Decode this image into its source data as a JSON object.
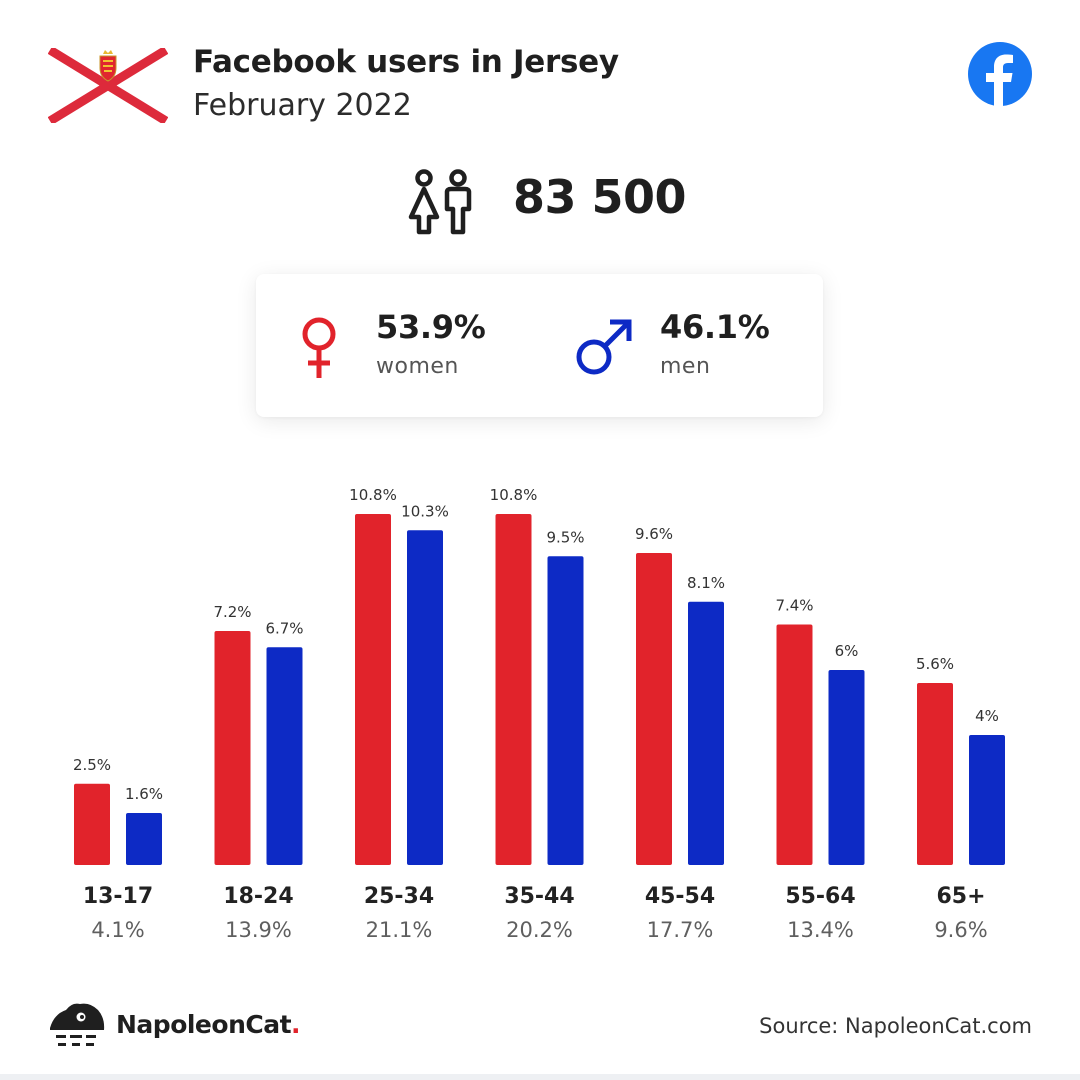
{
  "header": {
    "title": "Facebook users in Jersey",
    "subtitle": "February 2022"
  },
  "total_users": "83 500",
  "gender": {
    "women_pct": "53.9%",
    "women_label": "women",
    "men_pct": "46.1%",
    "men_label": "men"
  },
  "colors": {
    "women": "#e1232b",
    "men": "#0d2ac5",
    "facebook": "#1877f2",
    "flag_red": "#dd2a3b"
  },
  "icons": [
    "jersey-flag-icon",
    "facebook-logo-icon",
    "people-icon",
    "female-symbol-icon",
    "male-symbol-icon",
    "napoleoncat-logo-icon"
  ],
  "chart_data": {
    "type": "bar",
    "categories": [
      "13-17",
      "18-24",
      "25-34",
      "35-44",
      "45-54",
      "55-64",
      "65+"
    ],
    "category_totals": [
      "4.1%",
      "13.9%",
      "21.1%",
      "20.2%",
      "17.7%",
      "13.4%",
      "9.6%"
    ],
    "series": [
      {
        "values": [
          2.5,
          7.2,
          10.8,
          10.8,
          9.6,
          7.4,
          5.6
        ],
        "labels": [
          "2.5%",
          "7.2%",
          "10.8%",
          "10.8%",
          "9.6%",
          "7.4%",
          "5.6%"
        ],
        "color": "#e1232b"
      },
      {
        "values": [
          1.6,
          6.7,
          10.3,
          9.5,
          8.1,
          6,
          4
        ],
        "labels": [
          "1.6%",
          "6.7%",
          "10.3%",
          "9.5%",
          "8.1%",
          "6%",
          "4%"
        ],
        "color": "#0d2ac5"
      }
    ],
    "title": "",
    "xlabel": "",
    "ylabel": "",
    "ylim": [
      0,
      10.8
    ],
    "grid": false,
    "legend": "none"
  },
  "footer": {
    "brand_name": "NapoleonCat",
    "brand_dot": ".",
    "source": "Source: NapoleonCat.com"
  }
}
